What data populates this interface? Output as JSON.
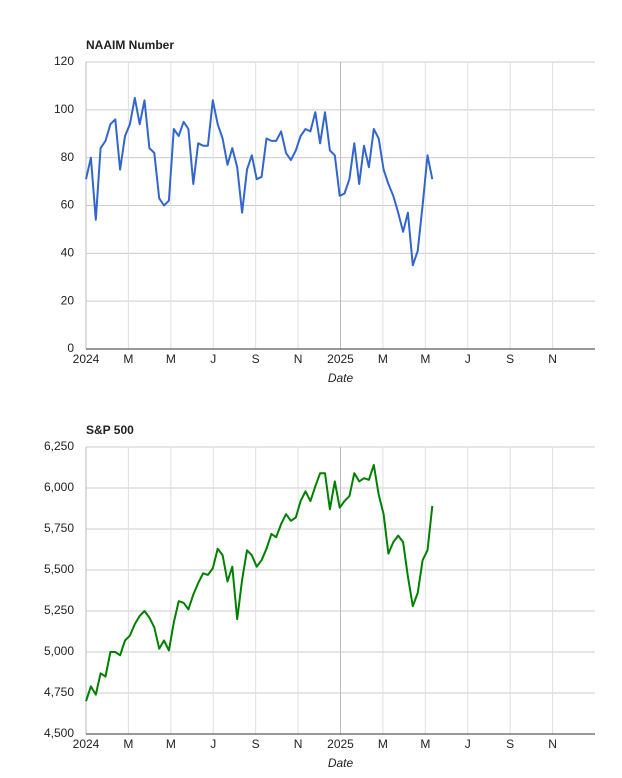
{
  "chart_data": [
    {
      "type": "line",
      "title": "NAAIM Number",
      "x_label": "Date",
      "color": "#3366cc",
      "x": [
        0,
        0.23,
        0.46,
        0.69,
        0.92,
        1.15,
        1.38,
        1.61,
        1.84,
        2.07,
        2.3,
        2.53,
        2.76,
        2.99,
        3.22,
        3.45,
        3.68,
        3.91,
        4.14,
        4.37,
        4.6,
        4.83,
        5.06,
        5.29,
        5.52,
        5.75,
        5.98,
        6.21,
        6.44,
        6.67,
        6.9,
        7.13,
        7.36,
        7.59,
        7.82,
        8.05,
        8.28,
        8.51,
        8.74,
        8.97,
        9.2,
        9.43,
        9.66,
        9.89,
        10.12,
        10.35,
        10.58,
        10.81,
        11.04,
        11.27,
        11.5,
        11.73,
        11.96,
        12.19,
        12.42,
        12.65,
        12.88,
        13.11,
        13.34,
        13.57,
        13.8,
        14.03,
        14.26,
        14.49,
        14.72,
        14.95,
        15.18,
        15.41,
        15.64,
        15.87,
        16.1,
        16.33
      ],
      "values": [
        71,
        80,
        54,
        84,
        87,
        94,
        96,
        75,
        89,
        94,
        105,
        94,
        104,
        84,
        82,
        63,
        60,
        62,
        92,
        89,
        95,
        92,
        69,
        86,
        85,
        85,
        104,
        94,
        88,
        77,
        84,
        76,
        57,
        75,
        81,
        71,
        72,
        88,
        87,
        87,
        91,
        82,
        79,
        83,
        89,
        92,
        91,
        99,
        86,
        99,
        83,
        81,
        64,
        65,
        71,
        86,
        69,
        85,
        76,
        92,
        88,
        75,
        69,
        64,
        57,
        49,
        57,
        35,
        41,
        60,
        81,
        71
      ],
      "xlim": [
        0,
        24
      ],
      "xticks": [
        {
          "value": 0,
          "label": "2024"
        },
        {
          "value": 2,
          "label": "M"
        },
        {
          "value": 4,
          "label": "M"
        },
        {
          "value": 6,
          "label": "J"
        },
        {
          "value": 8,
          "label": "S"
        },
        {
          "value": 10,
          "label": "N"
        },
        {
          "value": 12,
          "label": "2025"
        },
        {
          "value": 14,
          "label": "M"
        },
        {
          "value": 16,
          "label": "M"
        },
        {
          "value": 18,
          "label": "J"
        },
        {
          "value": 20,
          "label": "S"
        },
        {
          "value": 22,
          "label": "N"
        }
      ],
      "ylim": [
        0,
        120
      ],
      "yticks": [
        0,
        20,
        40,
        60,
        80,
        100,
        120
      ],
      "grid": true
    },
    {
      "type": "line",
      "title": "S&P 500",
      "x_label": "Date",
      "color": "#008000",
      "x": [
        0,
        0.23,
        0.46,
        0.69,
        0.92,
        1.15,
        1.38,
        1.61,
        1.84,
        2.07,
        2.3,
        2.53,
        2.76,
        2.99,
        3.22,
        3.45,
        3.68,
        3.91,
        4.14,
        4.37,
        4.6,
        4.83,
        5.06,
        5.29,
        5.52,
        5.75,
        5.98,
        6.21,
        6.44,
        6.67,
        6.9,
        7.13,
        7.36,
        7.59,
        7.82,
        8.05,
        8.28,
        8.51,
        8.74,
        8.97,
        9.2,
        9.43,
        9.66,
        9.89,
        10.12,
        10.35,
        10.58,
        10.81,
        11.04,
        11.27,
        11.5,
        11.73,
        11.96,
        12.19,
        12.42,
        12.65,
        12.88,
        13.11,
        13.34,
        13.57,
        13.8,
        14.03,
        14.26,
        14.49,
        14.72,
        14.95,
        15.18,
        15.41,
        15.64,
        15.87,
        16.1,
        16.33
      ],
      "values": [
        4700,
        4790,
        4740,
        4870,
        4850,
        5000,
        5000,
        4980,
        5070,
        5100,
        5170,
        5220,
        5250,
        5210,
        5150,
        5020,
        5070,
        5010,
        5180,
        5310,
        5300,
        5260,
        5350,
        5420,
        5480,
        5470,
        5510,
        5630,
        5590,
        5430,
        5520,
        5200,
        5440,
        5620,
        5590,
        5520,
        5560,
        5630,
        5720,
        5700,
        5780,
        5840,
        5800,
        5820,
        5920,
        5980,
        5920,
        6010,
        6090,
        6090,
        5870,
        6040,
        5880,
        5920,
        5950,
        6090,
        6040,
        6060,
        6050,
        6140,
        5960,
        5840,
        5600,
        5670,
        5710,
        5670,
        5460,
        5280,
        5360,
        5560,
        5620,
        5890
      ],
      "xlim": [
        0,
        24
      ],
      "xticks": [
        {
          "value": 0,
          "label": "2024"
        },
        {
          "value": 2,
          "label": "M"
        },
        {
          "value": 4,
          "label": "M"
        },
        {
          "value": 6,
          "label": "J"
        },
        {
          "value": 8,
          "label": "S"
        },
        {
          "value": 10,
          "label": "N"
        },
        {
          "value": 12,
          "label": "2025"
        },
        {
          "value": 14,
          "label": "M"
        },
        {
          "value": 16,
          "label": "M"
        },
        {
          "value": 18,
          "label": "J"
        },
        {
          "value": 20,
          "label": "S"
        },
        {
          "value": 22,
          "label": "N"
        }
      ],
      "ylim": [
        4500,
        6250
      ],
      "yticks": [
        {
          "value": 4500,
          "label": "4,500"
        },
        {
          "value": 4750,
          "label": "4,750"
        },
        {
          "value": 5000,
          "label": "5,000"
        },
        {
          "value": 5250,
          "label": "5,250"
        },
        {
          "value": 5500,
          "label": "5,500"
        },
        {
          "value": 5750,
          "label": "5,750"
        },
        {
          "value": 6000,
          "label": "6,000"
        },
        {
          "value": 6250,
          "label": "6,250"
        }
      ],
      "grid": true
    }
  ]
}
